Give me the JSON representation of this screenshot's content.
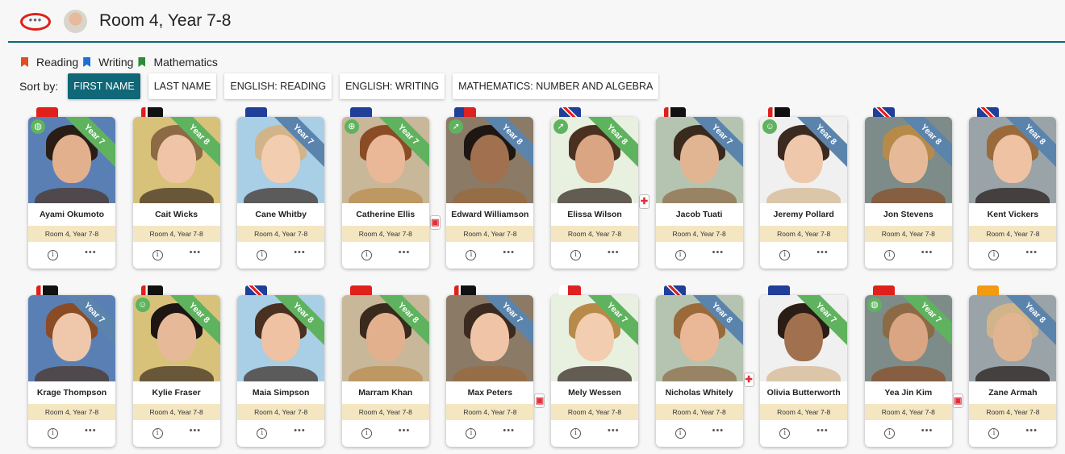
{
  "header": {
    "title": "Room 4, Year 7-8",
    "menu_icon": "ellipsis-icon"
  },
  "legend": [
    {
      "label": "Reading",
      "color": "#e0501e"
    },
    {
      "label": "Writing",
      "color": "#1e6fd6"
    },
    {
      "label": "Mathematics",
      "color": "#2e8b3a"
    }
  ],
  "sort": {
    "label": "Sort by:",
    "options": [
      "FIRST NAME",
      "LAST NAME",
      "ENGLISH: READING",
      "ENGLISH: WRITING",
      "MATHEMATICS: NUMBER AND ALGEBRA"
    ],
    "active": "FIRST NAME"
  },
  "colors": {
    "accent": "#0f6778",
    "ribbon_green": "#5fb35f",
    "ribbon_blue": "#5b84ad",
    "room_strip": "#f4e6c1"
  },
  "students": [
    {
      "name": "Ayami Okumoto",
      "room": "Room 4, Year 7-8",
      "year": "Year 7",
      "ribbon": "green",
      "flag": "red",
      "badge": "globe-icon"
    },
    {
      "name": "Cait Wicks",
      "room": "Room 4, Year 7-8",
      "year": "Year 8",
      "ribbon": "green",
      "flag": "black-red"
    },
    {
      "name": "Cane Whitby",
      "room": "Room 4, Year 7-8",
      "year": "Year 7",
      "ribbon": "blue",
      "flag": "eu"
    },
    {
      "name": "Catherine Ellis",
      "room": "Room 4, Year 7-8",
      "year": "Year 7",
      "ribbon": "green",
      "flag": "eu",
      "badge": "target-icon",
      "alert": "lock-icon"
    },
    {
      "name": "Edward Williamson",
      "room": "Room 4, Year 7-8",
      "year": "Year 8",
      "ribbon": "blue",
      "flag": "samoa",
      "badge": "rocket-icon"
    },
    {
      "name": "Elissa Wilson",
      "room": "Room 4, Year 7-8",
      "year": "Year 8",
      "ribbon": "green",
      "flag": "uk",
      "badge": "rocket-icon",
      "alert": "medical-icon"
    },
    {
      "name": "Jacob Tuati",
      "room": "Room 4, Year 7-8",
      "year": "Year 7",
      "ribbon": "blue",
      "flag": "black-red"
    },
    {
      "name": "Jeremy Pollard",
      "room": "Room 4, Year 7-8",
      "year": "Year 8",
      "ribbon": "blue",
      "flag": "black-red",
      "badge": "smile-icon"
    },
    {
      "name": "Jon Stevens",
      "room": "Room 4, Year 7-8",
      "year": "Year 8",
      "ribbon": "blue",
      "flag": "uk"
    },
    {
      "name": "Kent Vickers",
      "room": "Room 4, Year 7-8",
      "year": "Year 8",
      "ribbon": "blue",
      "flag": "uk"
    },
    {
      "name": "Krage Thompson",
      "room": "Room 4, Year 7-8",
      "year": "Year 7",
      "ribbon": "blue",
      "flag": "black-red"
    },
    {
      "name": "Kylie Fraser",
      "room": "Room 4, Year 7-8",
      "year": "Year 8",
      "ribbon": "green",
      "flag": "black-red",
      "badge": "smile-icon"
    },
    {
      "name": "Maia Simpson",
      "room": "Room 4, Year 7-8",
      "year": "Year 8",
      "ribbon": "green",
      "flag": "uk"
    },
    {
      "name": "Marram Khan",
      "room": "Room 4, Year 7-8",
      "year": "Year 8",
      "ribbon": "green",
      "flag": "red"
    },
    {
      "name": "Max Peters",
      "room": "Room 4, Year 7-8",
      "year": "Year 7",
      "ribbon": "blue",
      "flag": "black-red",
      "alert": "lock-icon"
    },
    {
      "name": "Mely Wessen",
      "room": "Room 4, Year 7-8",
      "year": "Year 7",
      "ribbon": "green",
      "flag": "tonga"
    },
    {
      "name": "Nicholas Whitely",
      "room": "Room 4, Year 7-8",
      "year": "Year 8",
      "ribbon": "blue",
      "flag": "uk",
      "alert": "medical-icon"
    },
    {
      "name": "Olivia Butterworth",
      "room": "Room 4, Year 7-8",
      "year": "Year 7",
      "ribbon": "green",
      "flag": "eu"
    },
    {
      "name": "Yea Jin Kim",
      "room": "Room 4, Year 7-8",
      "year": "Year 7",
      "ribbon": "green",
      "flag": "red",
      "badge": "globe-icon",
      "alert": "lock-icon"
    },
    {
      "name": "Zane Armah",
      "room": "Room 4, Year 7-8",
      "year": "Year 8",
      "ribbon": "blue",
      "flag": "orange"
    }
  ]
}
